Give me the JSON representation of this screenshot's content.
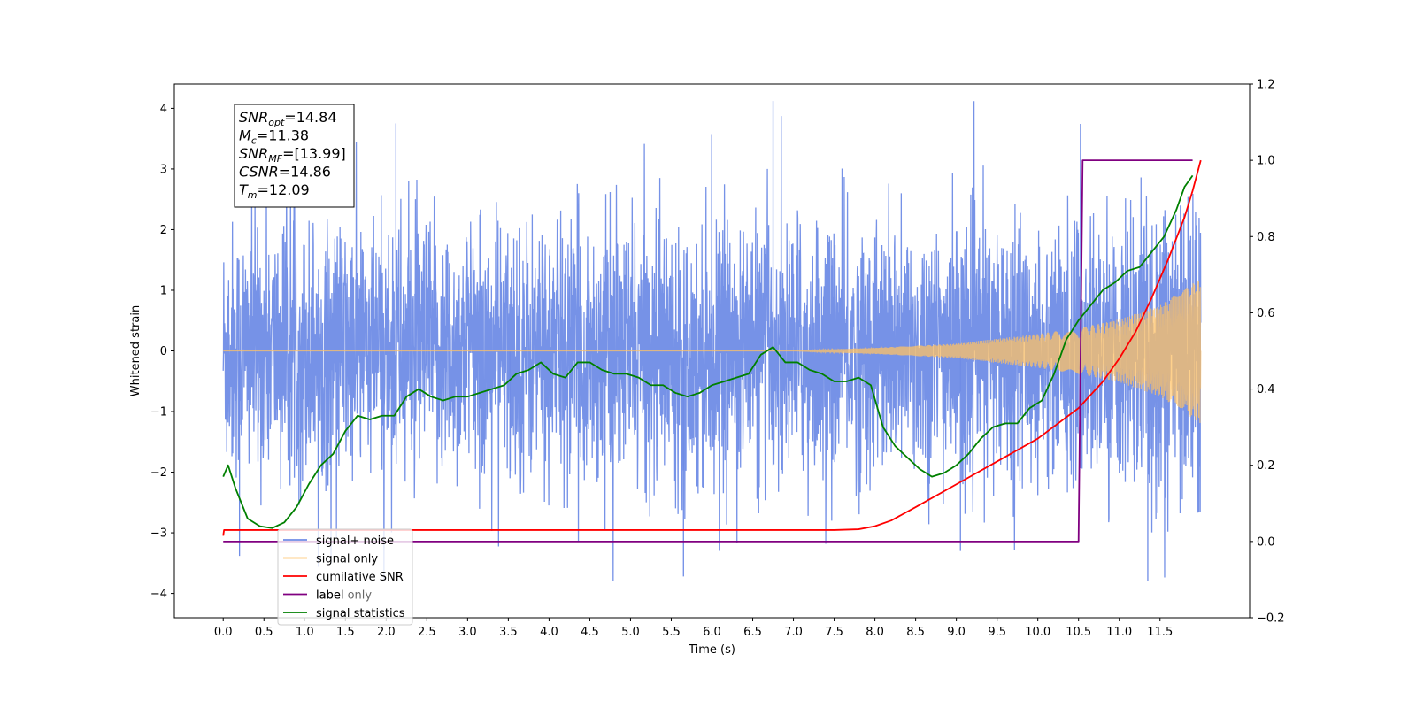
{
  "chart_data": {
    "type": "line",
    "title": "",
    "xlabel": "Time (s)",
    "ylabel": "Whitened strain",
    "xlim": [
      -0.6,
      12.6
    ],
    "ylim": [
      -4.4,
      4.4
    ],
    "y2lim": [
      -0.2,
      1.2
    ],
    "x_ticks": [
      0.0,
      0.5,
      1.0,
      1.5,
      2.0,
      2.5,
      3.0,
      3.5,
      4.0,
      4.5,
      5.0,
      5.5,
      6.0,
      6.5,
      7.0,
      7.5,
      8.0,
      8.5,
      9.0,
      9.5,
      10.0,
      10.5,
      11.0,
      11.5
    ],
    "x_tick_labels": [
      "0.0",
      "0.5",
      "1.0",
      "1.5",
      "2.0",
      "2.5",
      "3.0",
      "3.5",
      "4.0",
      "4.5",
      "5.0",
      "5.5",
      "6.0",
      "6.5",
      "7.0",
      "7.5",
      "8.0",
      "8.5",
      "9.0",
      "9.5",
      "10.0",
      "10.5",
      "11.0",
      "11.5"
    ],
    "y_ticks": [
      -4,
      -3,
      -2,
      -1,
      0,
      1,
      2,
      3,
      4
    ],
    "y_tick_labels": [
      "−4",
      "−3",
      "−2",
      "−1",
      "0",
      "1",
      "2",
      "3",
      "4"
    ],
    "y2_ticks": [
      -0.2,
      0.0,
      0.2,
      0.4,
      0.6,
      0.8,
      1.0,
      1.2
    ],
    "y2_tick_labels": [
      "−0.2",
      "0.0",
      "0.2",
      "0.4",
      "0.6",
      "0.8",
      "1.0",
      "1.2"
    ],
    "grid": false,
    "legend_position": "lower-left",
    "legend": [
      {
        "label": "signal+ noise",
        "color": "#6f8ce6"
      },
      {
        "label": "signal only",
        "color": "#ffc266"
      },
      {
        "label": "cumilative SNR",
        "color": "#ff0000"
      },
      {
        "label": "label",
        "color": "#800080"
      },
      {
        "label": "signal statistics",
        "color": "#008000"
      }
    ],
    "legend_ghost_text": "label only",
    "info_box": [
      {
        "sym": "SNR",
        "sub": "opt",
        "value": "=14.84"
      },
      {
        "sym": "M",
        "sub": "c",
        "value": "=11.38"
      },
      {
        "sym": "SNR",
        "sub": "MF",
        "value": "=[13.99]"
      },
      {
        "sym": "CSNR",
        "sub": "",
        "value": "=14.86"
      },
      {
        "sym": "T",
        "sub": "m",
        "value": "=12.09"
      }
    ],
    "series": [
      {
        "name": "signal+ noise",
        "axis": "left",
        "color": "#6f8ce6",
        "description_range": [
          0.0,
          12.0
        ],
        "mean": 0.0,
        "approx_upper_extent": 3.0,
        "approx_lower_extent": -2.6,
        "max_peak": 4.12,
        "min_peak": -3.8
      },
      {
        "name": "signal only",
        "axis": "left",
        "color": "#ffc266",
        "chirp_start": 7.0,
        "chirp_end": 12.0,
        "envelope": [
          [
            0.0,
            0.0
          ],
          [
            7.0,
            0.0
          ],
          [
            8.0,
            0.05
          ],
          [
            9.0,
            0.12
          ],
          [
            10.0,
            0.28
          ],
          [
            10.5,
            0.38
          ],
          [
            11.0,
            0.52
          ],
          [
            11.5,
            0.75
          ],
          [
            12.0,
            1.2
          ]
        ]
      },
      {
        "name": "cumilative SNR",
        "axis": "right",
        "color": "#ff0000",
        "x": [
          0.0,
          0.01,
          7.0,
          7.5,
          7.8,
          8.0,
          8.2,
          8.5,
          9.0,
          9.5,
          10.0,
          10.5,
          10.8,
          11.0,
          11.2,
          11.4,
          11.6,
          11.8,
          11.9,
          12.0
        ],
        "y": [
          0.015,
          0.03,
          0.03,
          0.03,
          0.032,
          0.04,
          0.055,
          0.09,
          0.15,
          0.21,
          0.27,
          0.35,
          0.42,
          0.48,
          0.55,
          0.64,
          0.74,
          0.85,
          0.92,
          1.0
        ]
      },
      {
        "name": "label",
        "axis": "right",
        "color": "#800080",
        "x": [
          0.0,
          10.5,
          10.55,
          11.9
        ],
        "y": [
          0.0,
          0.0,
          1.0,
          1.0
        ]
      },
      {
        "name": "signal statistics",
        "axis": "right",
        "color": "#008000",
        "x": [
          0.0,
          0.06,
          0.15,
          0.3,
          0.45,
          0.6,
          0.75,
          0.9,
          1.05,
          1.2,
          1.35,
          1.5,
          1.65,
          1.8,
          1.95,
          2.1,
          2.25,
          2.4,
          2.55,
          2.7,
          2.85,
          3.0,
          3.15,
          3.3,
          3.45,
          3.6,
          3.75,
          3.9,
          4.05,
          4.2,
          4.35,
          4.5,
          4.65,
          4.8,
          4.95,
          5.1,
          5.25,
          5.4,
          5.55,
          5.7,
          5.85,
          6.0,
          6.15,
          6.3,
          6.45,
          6.6,
          6.75,
          6.9,
          7.05,
          7.2,
          7.35,
          7.5,
          7.65,
          7.8,
          7.95,
          8.1,
          8.25,
          8.4,
          8.55,
          8.7,
          8.85,
          9.0,
          9.15,
          9.3,
          9.45,
          9.6,
          9.75,
          9.9,
          10.05,
          10.2,
          10.35,
          10.5,
          10.65,
          10.8,
          10.95,
          11.1,
          11.25,
          11.4,
          11.55,
          11.7,
          11.8,
          11.9
        ],
        "y": [
          0.17,
          0.2,
          0.14,
          0.06,
          0.04,
          0.035,
          0.05,
          0.09,
          0.15,
          0.2,
          0.23,
          0.29,
          0.33,
          0.32,
          0.33,
          0.33,
          0.38,
          0.4,
          0.38,
          0.37,
          0.38,
          0.38,
          0.39,
          0.4,
          0.41,
          0.44,
          0.45,
          0.47,
          0.44,
          0.43,
          0.47,
          0.47,
          0.45,
          0.44,
          0.44,
          0.43,
          0.41,
          0.41,
          0.39,
          0.38,
          0.39,
          0.41,
          0.42,
          0.43,
          0.44,
          0.49,
          0.51,
          0.47,
          0.47,
          0.45,
          0.44,
          0.42,
          0.42,
          0.43,
          0.41,
          0.3,
          0.25,
          0.22,
          0.19,
          0.17,
          0.18,
          0.2,
          0.23,
          0.27,
          0.3,
          0.31,
          0.31,
          0.35,
          0.37,
          0.44,
          0.53,
          0.58,
          0.62,
          0.66,
          0.68,
          0.71,
          0.72,
          0.76,
          0.8,
          0.87,
          0.93,
          0.96
        ]
      }
    ]
  }
}
